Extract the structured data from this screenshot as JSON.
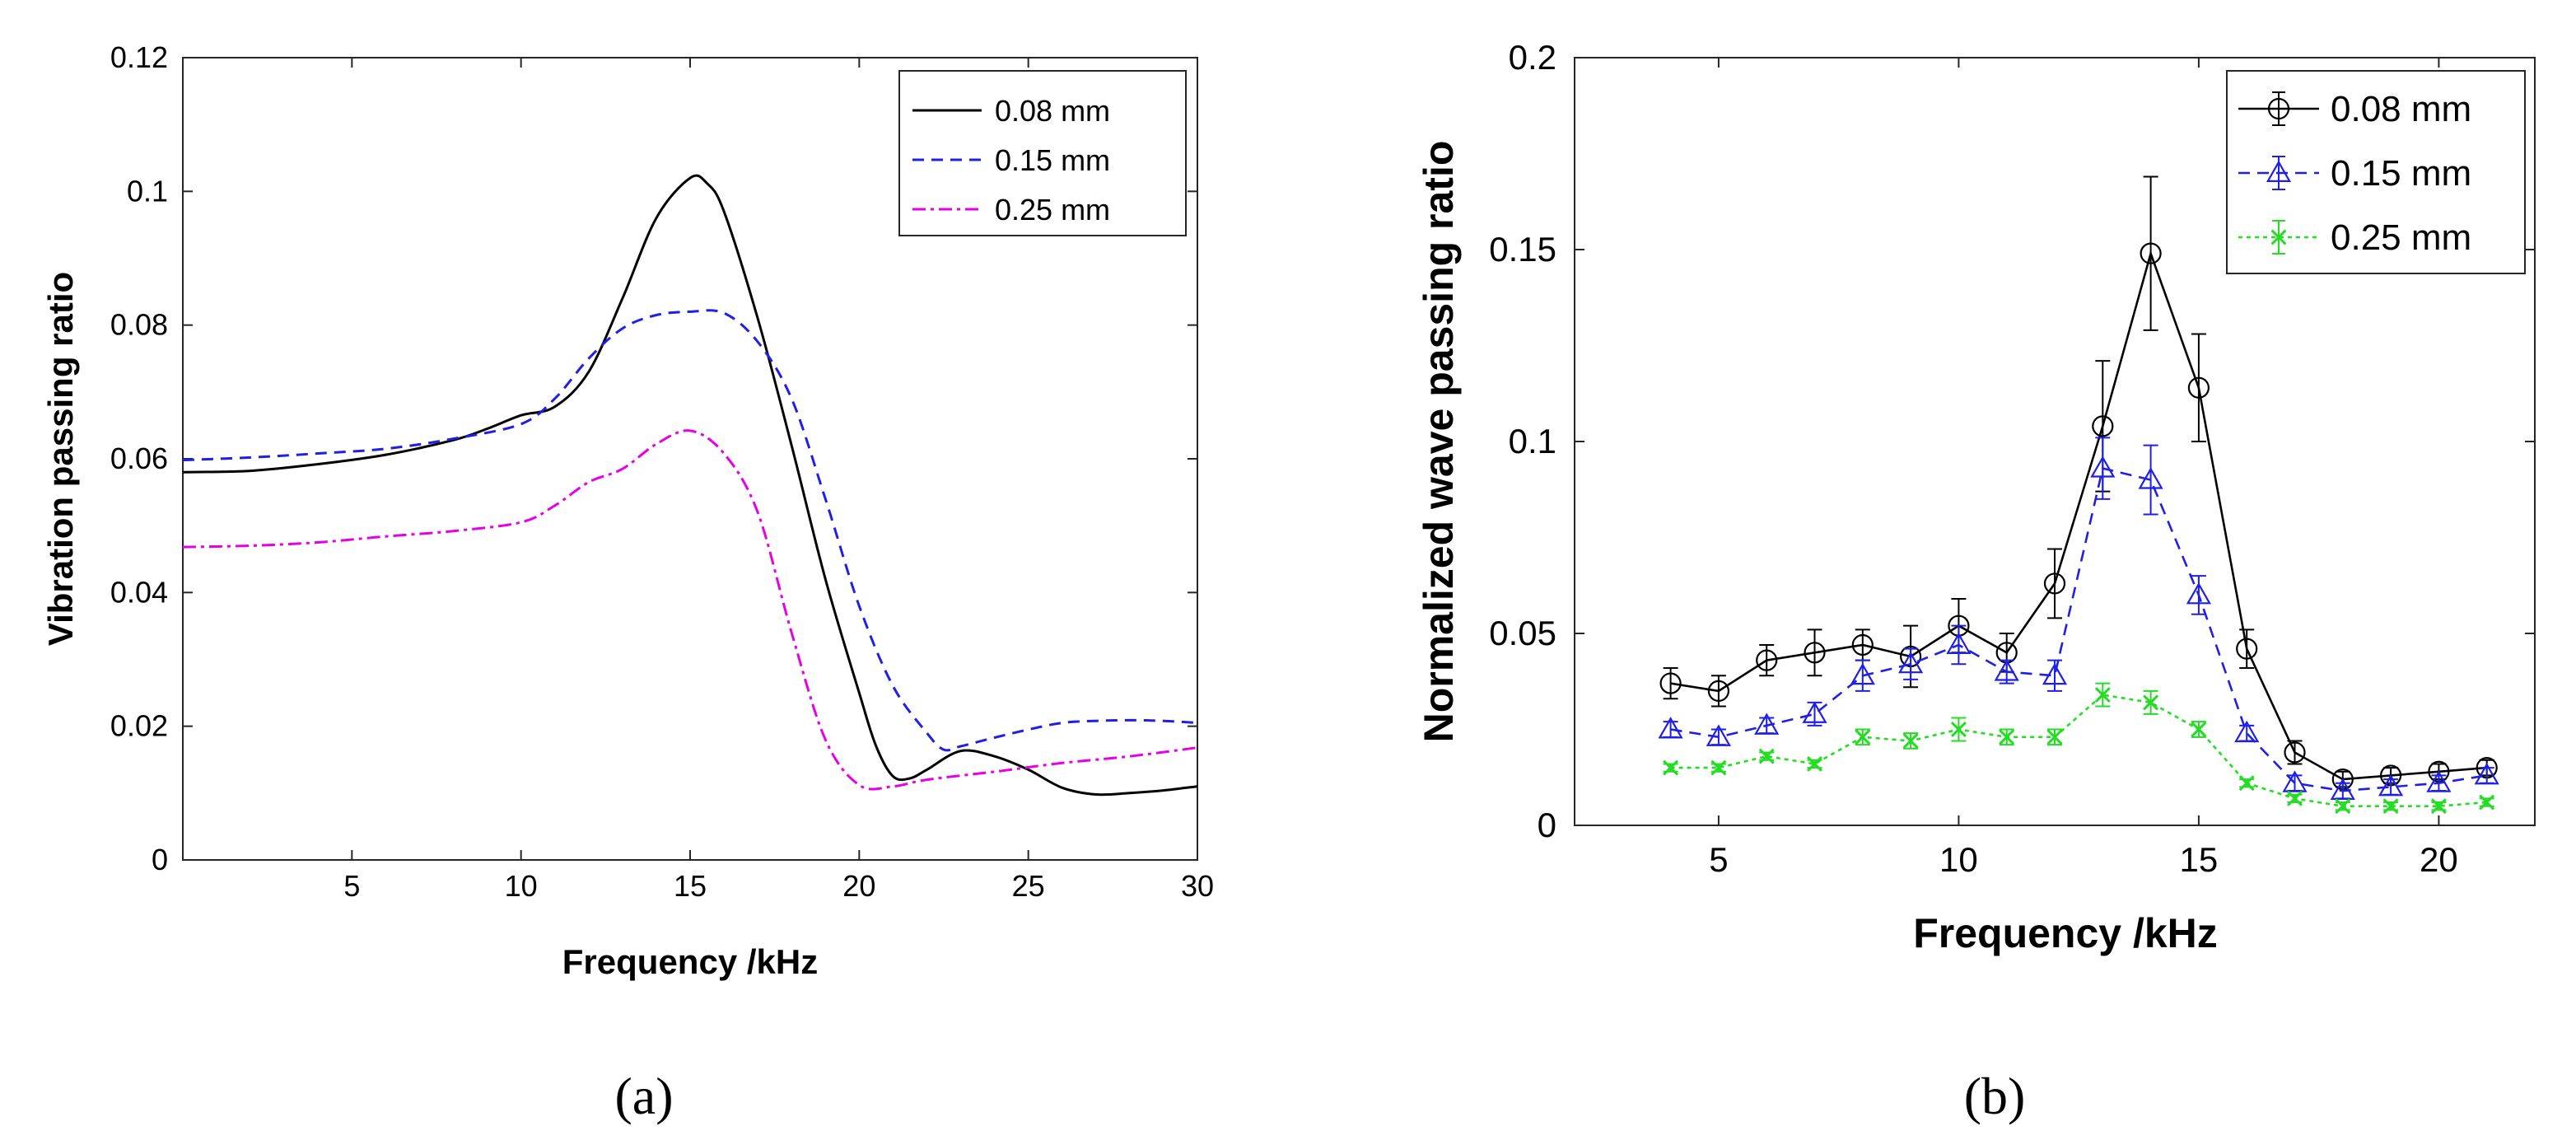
{
  "chart_data": [
    {
      "id": "a",
      "type": "line",
      "panel_label": "(a)",
      "xlabel": "Frequency /kHz",
      "ylabel": "Vibration passing ratio",
      "xlim": [
        0,
        30
      ],
      "ylim": [
        0,
        0.12
      ],
      "x_ticks": [
        "5",
        "10",
        "15",
        "20",
        "25",
        "30"
      ],
      "y_ticks": [
        "0",
        "0.02",
        "0.04",
        "0.06",
        "0.08",
        "0.1",
        "0.12"
      ],
      "legend_position": "top-right",
      "series": [
        {
          "name": "0.08 mm",
          "color": "#000000",
          "dash": "solid",
          "points": [
            [
              0,
              0.058
            ],
            [
              2,
              0.0582
            ],
            [
              4,
              0.0592
            ],
            [
              6,
              0.0606
            ],
            [
              8,
              0.0628
            ],
            [
              9,
              0.0645
            ],
            [
              10,
              0.0665
            ],
            [
              11,
              0.0678
            ],
            [
              12,
              0.073
            ],
            [
              13,
              0.084
            ],
            [
              14,
              0.096
            ],
            [
              15,
              0.102
            ],
            [
              15.5,
              0.1012
            ],
            [
              16,
              0.097
            ],
            [
              17,
              0.081
            ],
            [
              18,
              0.062
            ],
            [
              19,
              0.042
            ],
            [
              20,
              0.025
            ],
            [
              20.5,
              0.017
            ],
            [
              21,
              0.0125
            ],
            [
              21.5,
              0.0122
            ],
            [
              22,
              0.0135
            ],
            [
              23,
              0.0163
            ],
            [
              24,
              0.0155
            ],
            [
              25,
              0.0135
            ],
            [
              26,
              0.0108
            ],
            [
              27,
              0.0098
            ],
            [
              28,
              0.01
            ],
            [
              29,
              0.0104
            ],
            [
              30,
              0.011
            ]
          ]
        },
        {
          "name": "0.15 mm",
          "color": "#1f1fe6",
          "dash": "dashed",
          "points": [
            [
              0,
              0.0598
            ],
            [
              2,
              0.0602
            ],
            [
              4,
              0.0608
            ],
            [
              6,
              0.0615
            ],
            [
              8,
              0.063
            ],
            [
              10,
              0.0652
            ],
            [
              11,
              0.069
            ],
            [
              12,
              0.075
            ],
            [
              13,
              0.0795
            ],
            [
              14,
              0.0815
            ],
            [
              15,
              0.082
            ],
            [
              16,
              0.0818
            ],
            [
              17,
              0.0775
            ],
            [
              18,
              0.069
            ],
            [
              19,
              0.054
            ],
            [
              20,
              0.038
            ],
            [
              21,
              0.026
            ],
            [
              22,
              0.019
            ],
            [
              22.5,
              0.0165
            ],
            [
              23,
              0.017
            ],
            [
              24,
              0.0183
            ],
            [
              25,
              0.0195
            ],
            [
              26,
              0.0205
            ],
            [
              27,
              0.0208
            ],
            [
              28,
              0.0209
            ],
            [
              29,
              0.0208
            ],
            [
              30,
              0.0205
            ]
          ]
        },
        {
          "name": "0.25 mm",
          "color": "#e600e6",
          "dash": "dashdot",
          "points": [
            [
              0,
              0.0468
            ],
            [
              2,
              0.047
            ],
            [
              4,
              0.0475
            ],
            [
              6,
              0.0484
            ],
            [
              8,
              0.0492
            ],
            [
              10,
              0.0505
            ],
            [
              11,
              0.053
            ],
            [
              12,
              0.0565
            ],
            [
              13,
              0.0585
            ],
            [
              14,
              0.0622
            ],
            [
              15,
              0.0642
            ],
            [
              16,
              0.0608
            ],
            [
              17,
              0.052
            ],
            [
              18,
              0.034
            ],
            [
              19,
              0.018
            ],
            [
              20,
              0.0112
            ],
            [
              21,
              0.011
            ],
            [
              22,
              0.012
            ],
            [
              24,
              0.0132
            ],
            [
              26,
              0.0145
            ],
            [
              28,
              0.0155
            ],
            [
              30,
              0.0168
            ]
          ]
        }
      ]
    },
    {
      "id": "b",
      "type": "line",
      "panel_label": "(b)",
      "xlabel": "Frequency /kHz",
      "ylabel": "Normalized wave passing ratio",
      "xlim": [
        2,
        22
      ],
      "ylim": [
        0,
        0.2
      ],
      "x_ticks": [
        "5",
        "10",
        "15",
        "20"
      ],
      "y_ticks": [
        "0",
        "0.05",
        "0.1",
        "0.15",
        "0.2"
      ],
      "legend_position": "top-right",
      "x": [
        4,
        5,
        6,
        7,
        8,
        9,
        10,
        11,
        12,
        13,
        14,
        15,
        16,
        17,
        18,
        19,
        20,
        21
      ],
      "series": [
        {
          "name": "0.08 mm",
          "color": "#000000",
          "dash": "solid",
          "marker": "circle",
          "values": [
            0.037,
            0.035,
            0.043,
            0.045,
            0.047,
            0.044,
            0.052,
            0.045,
            0.063,
            0.104,
            0.149,
            0.114,
            0.046,
            0.019,
            0.012,
            0.013,
            0.014,
            0.015
          ],
          "errors": [
            0.004,
            0.004,
            0.004,
            0.006,
            0.004,
            0.008,
            0.007,
            0.005,
            0.009,
            0.017,
            0.02,
            0.014,
            0.005,
            0.003,
            0.002,
            0.002,
            0.002,
            0.002
          ]
        },
        {
          "name": "0.15 mm",
          "color": "#1f1fe6",
          "dash": "dashed",
          "marker": "triangle",
          "values": [
            0.025,
            0.023,
            0.026,
            0.029,
            0.039,
            0.042,
            0.047,
            0.04,
            0.039,
            0.093,
            0.09,
            0.06,
            0.024,
            0.011,
            0.009,
            0.01,
            0.011,
            0.013
          ],
          "errors": [
            0.002,
            0.002,
            0.002,
            0.003,
            0.004,
            0.004,
            0.005,
            0.003,
            0.004,
            0.008,
            0.009,
            0.005,
            0.002,
            0.002,
            0.002,
            0.002,
            0.002,
            0.002
          ]
        },
        {
          "name": "0.25 mm",
          "color": "#22dd22",
          "dash": "dotted",
          "marker": "x",
          "values": [
            0.015,
            0.015,
            0.018,
            0.016,
            0.023,
            0.022,
            0.025,
            0.023,
            0.023,
            0.034,
            0.032,
            0.025,
            0.011,
            0.007,
            0.005,
            0.005,
            0.005,
            0.006
          ],
          "errors": [
            0.001,
            0.001,
            0.001,
            0.001,
            0.002,
            0.002,
            0.003,
            0.002,
            0.002,
            0.003,
            0.003,
            0.002,
            0.001,
            0.001,
            0.001,
            0.001,
            0.001,
            0.001
          ]
        }
      ]
    }
  ]
}
